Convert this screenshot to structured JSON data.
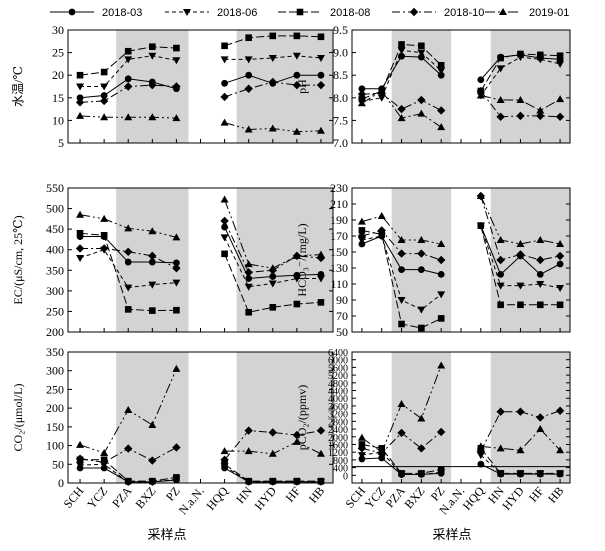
{
  "legend": [
    {
      "name": "2018-03",
      "marker": "circle",
      "dash": "none"
    },
    {
      "name": "2018-06",
      "marker": "tri-down",
      "dash": "4,3"
    },
    {
      "name": "2018-08",
      "marker": "square",
      "dash": "8,3"
    },
    {
      "name": "2018-10",
      "marker": "diamond",
      "dash": "8,3,2,3"
    },
    {
      "name": "2019-01",
      "marker": "tri-up",
      "dash": "10,3,2,3,2,3"
    }
  ],
  "x_title": "采样点",
  "shade_color": "#d3d3d3",
  "chart_data": [
    {
      "type": "line",
      "ylabel": "水温/℃",
      "ylim": [
        5,
        30
      ],
      "yticks": [
        5,
        10,
        15,
        20,
        25,
        30
      ],
      "categories": [
        "SCH",
        "YCZ",
        "PZA",
        "BXZ",
        "PZ",
        "N.a.N.",
        "HQQ",
        "HN",
        "HYD",
        "HF",
        "HB"
      ],
      "series": [
        {
          "name": "2018-03",
          "values": [
            15,
            15.5,
            19.2,
            18.5,
            17,
            null,
            18.2,
            20,
            18.2,
            20,
            20
          ]
        },
        {
          "name": "2018-06",
          "values": [
            17.5,
            17.5,
            23.5,
            24.3,
            23.3,
            null,
            23.5,
            23.5,
            23.8,
            24.3,
            23.8
          ]
        },
        {
          "name": "2018-08",
          "values": [
            20,
            20.7,
            25.3,
            26.3,
            26,
            null,
            26.5,
            28.3,
            28.7,
            28.7,
            28.5
          ]
        },
        {
          "name": "2018-10",
          "values": [
            14,
            14.3,
            17.5,
            17.8,
            17.5,
            null,
            15.2,
            17,
            18.5,
            17.8,
            17.8
          ]
        },
        {
          "name": "2019-01",
          "values": [
            11,
            10.7,
            10.7,
            10.7,
            10.5,
            null,
            9.5,
            8,
            8.2,
            7.5,
            7.7
          ]
        }
      ]
    },
    {
      "type": "line",
      "ylabel": "pH",
      "ylim": [
        7.0,
        9.5
      ],
      "yticks": [
        7.0,
        7.5,
        8.0,
        8.5,
        9.0,
        9.5
      ],
      "categories": [
        "SCH",
        "YCZ",
        "PZA",
        "BXZ",
        "PZ",
        "N.a.N.",
        "HQQ",
        "HN",
        "HYD",
        "HF",
        "HB"
      ],
      "series": [
        {
          "name": "2018-03",
          "values": [
            8.2,
            8.2,
            8.92,
            8.9,
            8.5,
            null,
            8.4,
            8.9,
            8.95,
            8.88,
            8.85
          ]
        },
        {
          "name": "2018-06",
          "values": [
            7.92,
            8.0,
            9.05,
            9.0,
            8.6,
            null,
            8.05,
            8.65,
            8.9,
            8.85,
            8.75
          ]
        },
        {
          "name": "2018-08",
          "values": [
            7.97,
            8.15,
            9.18,
            9.15,
            8.72,
            null,
            8.15,
            8.88,
            8.97,
            8.95,
            8.93
          ]
        },
        {
          "name": "2018-10",
          "values": [
            8.08,
            8.1,
            7.75,
            7.95,
            7.72,
            null,
            8.15,
            7.58,
            7.6,
            7.6,
            7.58
          ]
        },
        {
          "name": "2019-01",
          "values": [
            7.88,
            8.15,
            7.55,
            7.65,
            7.35,
            null,
            8.05,
            7.95,
            7.95,
            7.72,
            7.97
          ]
        }
      ]
    },
    {
      "type": "line",
      "ylabel": "EC/(μS/cm, 25℃)",
      "ylim": [
        200,
        550
      ],
      "yticks": [
        200,
        250,
        300,
        350,
        400,
        450,
        500,
        550
      ],
      "categories": [
        "SCH",
        "YCZ",
        "PZA",
        "BXZ",
        "PZ",
        "N.a.N.",
        "HQQ",
        "HN",
        "HYD",
        "HF",
        "HB"
      ],
      "series": [
        {
          "name": "2018-03",
          "values": [
            432,
            432,
            370,
            370,
            368,
            null,
            455,
            330,
            335,
            338,
            340
          ]
        },
        {
          "name": "2018-06",
          "values": [
            380,
            400,
            308,
            315,
            320,
            null,
            430,
            310,
            318,
            330,
            330
          ]
        },
        {
          "name": "2018-08",
          "values": [
            440,
            435,
            255,
            252,
            253,
            null,
            390,
            248,
            260,
            268,
            272
          ]
        },
        {
          "name": "2018-10",
          "values": [
            403,
            403,
            395,
            385,
            355,
            null,
            470,
            345,
            350,
            385,
            380
          ]
        },
        {
          "name": "2019-01",
          "values": [
            485,
            475,
            452,
            445,
            430,
            null,
            522,
            365,
            355,
            385,
            388
          ]
        }
      ]
    },
    {
      "type": "line",
      "ylabel": "HCO₃⁻/(mg/L)",
      "ylim": [
        50,
        230
      ],
      "yticks": [
        50,
        70,
        90,
        110,
        130,
        150,
        170,
        190,
        210,
        230
      ],
      "categories": [
        "SCH",
        "YCZ",
        "PZA",
        "BXZ",
        "PZ",
        "N.a.N.",
        "HQQ",
        "HN",
        "HYD",
        "HF",
        "HB"
      ],
      "series": [
        {
          "name": "2018-03",
          "values": [
            160,
            170,
            128,
            128,
            122,
            null,
            183,
            122,
            145,
            122,
            135
          ]
        },
        {
          "name": "2018-06",
          "values": [
            165,
            170,
            90,
            78,
            97,
            null,
            183,
            108,
            108,
            110,
            105
          ]
        },
        {
          "name": "2018-08",
          "values": [
            177,
            172,
            60,
            55,
            67,
            null,
            183,
            84,
            84,
            84,
            84
          ]
        },
        {
          "name": "2018-10",
          "values": [
            170,
            177,
            148,
            148,
            140,
            null,
            220,
            140,
            147,
            140,
            145
          ]
        },
        {
          "name": "2019-01",
          "values": [
            188,
            195,
            165,
            165,
            160,
            null,
            220,
            165,
            160,
            165,
            160
          ]
        }
      ]
    },
    {
      "type": "line",
      "ylabel": "CO₂/(μmol/L)",
      "ylim": [
        0,
        350
      ],
      "yticks": [
        0,
        50,
        100,
        150,
        200,
        250,
        300,
        350
      ],
      "categories": [
        "SCH",
        "YCZ",
        "PZA",
        "BXZ",
        "PZ",
        "N.a.N.",
        "HQQ",
        "HN",
        "HYD",
        "HF",
        "HB"
      ],
      "series": [
        {
          "name": "2018-03",
          "values": [
            40,
            40,
            3,
            3,
            8,
            null,
            40,
            3,
            3,
            3,
            3
          ]
        },
        {
          "name": "2018-06",
          "values": [
            48,
            50,
            2,
            2,
            10,
            null,
            45,
            3,
            3,
            3,
            3
          ]
        },
        {
          "name": "2018-08",
          "values": [
            62,
            62,
            5,
            5,
            15,
            null,
            50,
            5,
            5,
            5,
            5
          ]
        },
        {
          "name": "2018-10",
          "values": [
            65,
            55,
            92,
            60,
            95,
            null,
            62,
            140,
            135,
            128,
            140
          ]
        },
        {
          "name": "2019-01",
          "values": [
            102,
            80,
            195,
            155,
            305,
            null,
            85,
            85,
            78,
            110,
            78
          ]
        }
      ]
    },
    {
      "type": "line",
      "ylabel": "pCO₂/(ppmv)",
      "ylim": [
        -400,
        6400
      ],
      "yticks": [
        0,
        400,
        800,
        1200,
        1600,
        2000,
        2400,
        2800,
        3200,
        3600,
        4000,
        4400,
        4800,
        5200,
        5600,
        6000,
        6400
      ],
      "ytick_labels": [
        "0",
        "400",
        "800",
        "1200",
        "1600",
        "2000",
        "2400",
        "2800",
        "3200",
        "3600",
        "4000",
        "4400",
        "4800",
        "5200",
        "5600",
        "6000",
        "6400"
      ],
      "reference_line": 450,
      "categories": [
        "SCH",
        "YCZ",
        "PZA",
        "BXZ",
        "PZ",
        "N.a.N.",
        "HQQ",
        "HN",
        "HYD",
        "HF",
        "HB"
      ],
      "series": [
        {
          "name": "2018-03",
          "values": [
            850,
            900,
            40,
            50,
            100,
            null,
            580,
            60,
            60,
            60,
            60
          ]
        },
        {
          "name": "2018-06",
          "values": [
            1050,
            1200,
            60,
            50,
            150,
            null,
            1050,
            80,
            80,
            80,
            80
          ]
        },
        {
          "name": "2018-08",
          "values": [
            1600,
            1400,
            100,
            100,
            300,
            null,
            1400,
            100,
            100,
            100,
            100
          ]
        },
        {
          "name": "2018-10",
          "values": [
            1400,
            1150,
            2200,
            1400,
            2250,
            null,
            1250,
            3300,
            3300,
            3000,
            3350
          ]
        },
        {
          "name": "2019-01",
          "values": [
            1950,
            1200,
            3700,
            2950,
            5700,
            null,
            1500,
            1400,
            1300,
            2400,
            1300
          ]
        }
      ]
    }
  ]
}
